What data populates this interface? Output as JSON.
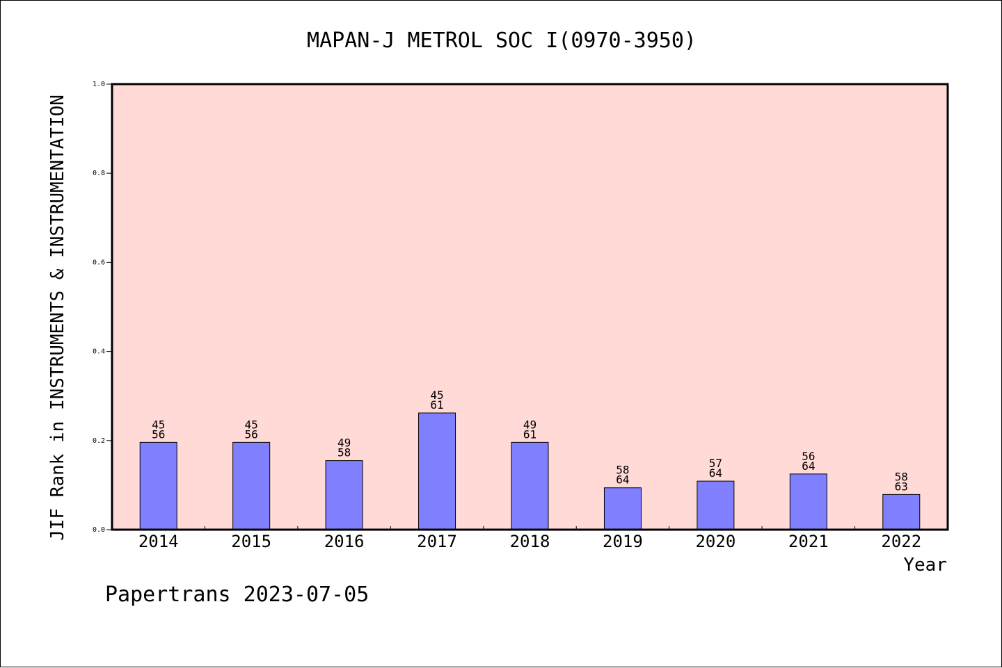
{
  "chart_data": {
    "type": "bar",
    "title": "MAPAN-J METROL SOC I(0970-3950)",
    "xlabel": "Year",
    "ylabel": "JIF Rank in INSTRUMENTS & INSTRUMENTATION",
    "ylim": [
      0,
      1.0
    ],
    "yticks": [
      "0.0",
      "0.2",
      "0.4",
      "0.6",
      "0.8",
      "1.0"
    ],
    "categories": [
      "2014",
      "2015",
      "2016",
      "2017",
      "2018",
      "2019",
      "2020",
      "2021",
      "2022"
    ],
    "values": [
      0.196,
      0.196,
      0.155,
      0.262,
      0.196,
      0.094,
      0.109,
      0.125,
      0.079
    ],
    "labels_top": [
      "45",
      "45",
      "49",
      "45",
      "49",
      "58",
      "57",
      "56",
      "58"
    ],
    "labels_bottom": [
      "56",
      "56",
      "58",
      "61",
      "61",
      "64",
      "64",
      "64",
      "63"
    ],
    "grid": false,
    "colors": {
      "plot_background": "#FFDAD7",
      "bar_fill": "#8080FF",
      "bar_stroke": "#000000"
    }
  },
  "footer": {
    "text": "Papertrans 2023-07-05"
  }
}
